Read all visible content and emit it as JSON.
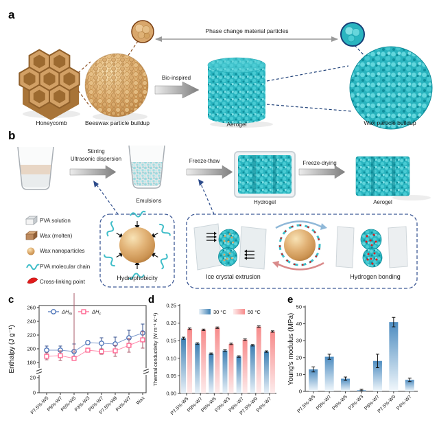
{
  "panel_letters": {
    "a": "a",
    "b": "b",
    "c": "c",
    "d": "d",
    "e": "e"
  },
  "panel_a": {
    "phase_particles_label": "Phase change material particles",
    "bio_inspired_label": "Bio-inspired",
    "captions": {
      "honeycomb": "Honeycomb",
      "beeswax": "Beeswax particle buildup",
      "aerogel": "Aerogel",
      "wax_buildup": "Wax particle buildup"
    }
  },
  "panel_b": {
    "arrow1_line1": "Stirring",
    "arrow1_line2": "Ultrasonic dispersion",
    "emulsions_label": "Emulsions",
    "arrow2_label": "Freeze-thaw",
    "hydrogel_label": "Hydrogel",
    "arrow3_label": "Freeze-drying",
    "aerogel_label": "Aerogel",
    "legend": [
      {
        "icon": "pva-solution-icon",
        "label": "PVA solution"
      },
      {
        "icon": "wax-molten-icon",
        "label": "Wax (molten)"
      },
      {
        "icon": "wax-nanoparticles-icon",
        "label": "Wax nanoparticles"
      },
      {
        "icon": "pva-molecular-chain-icon",
        "label": "PVA molecular chain"
      },
      {
        "icon": "cross-linking-point-icon",
        "label": "Cross-linking point"
      }
    ],
    "inset_labels": {
      "hydrophobicity": "Hydrophobicity",
      "ice_crystal": "Ice crystal extrusion",
      "hydrogen_bonding": "Hydrogen bonding"
    }
  },
  "chart_data": [
    {
      "panel": "c",
      "type": "line",
      "title": "",
      "ylabel": "Enthalpy (J g⁻¹)",
      "categories": [
        "P7.5%-W5",
        "P9%-W7",
        "P6%-W5",
        "P3%-W3",
        "P6%-W7",
        "P7.5%-W9",
        "P4%-W7",
        "Wax"
      ],
      "series": [
        {
          "name": "ΔH_m",
          "marker": "circle",
          "color": "#4a72b8",
          "error_color": "#35508f",
          "values": [
            198,
            198,
            196,
            209,
            208,
            207,
            216,
            223
          ],
          "errors": [
            6,
            6,
            11,
            3,
            8,
            10,
            11,
            13
          ]
        },
        {
          "name": "ΔH_c",
          "marker": "square",
          "color": "#ff5c8a",
          "error_color": "#a85868",
          "values": [
            189,
            190,
            186,
            198,
            196,
            197,
            205,
            213
          ],
          "errors": [
            5,
            7,
            9,
            2,
            4,
            8,
            10,
            12
          ]
        }
      ],
      "y_ticks_upper": [
        "180",
        "200",
        "220",
        "240",
        "260"
      ],
      "y_ticks_lower": [
        "0",
        "20"
      ],
      "axis_break": true,
      "ylim_upper": [
        180,
        260
      ],
      "ylim_lower": [
        0,
        20
      ],
      "legend_position": "top",
      "grid": false
    },
    {
      "panel": "d",
      "type": "bar",
      "title": "",
      "ylabel": "Thermal conductivity (W m⁻¹ K⁻¹)",
      "categories": [
        "P7.5%-W5",
        "P9%-W7",
        "P6%-W5",
        "P3%-W3",
        "P6%-W7",
        "P7.5%-W9",
        "P4%-W7"
      ],
      "series": [
        {
          "name": "30 °C",
          "color_top": "#3d80b4",
          "color_bottom": "#e9f1f8",
          "values": [
            0.157,
            0.142,
            0.113,
            0.122,
            0.105,
            0.137,
            0.119
          ],
          "errors": [
            0.003,
            0.002,
            0.002,
            0.002,
            0.002,
            0.002,
            0.002
          ]
        },
        {
          "name": "50 °C",
          "color_top": "#f78b8b",
          "color_bottom": "#fdecec",
          "values": [
            0.184,
            0.181,
            0.187,
            0.141,
            0.153,
            0.19,
            0.176
          ],
          "errors": [
            0.002,
            0.002,
            0.002,
            0.002,
            0.002,
            0.002,
            0.002
          ]
        }
      ],
      "y_ticks": [
        "0.00",
        "0.05",
        "0.10",
        "0.15",
        "0.20",
        "0.25"
      ],
      "ylim": [
        0,
        0.25
      ],
      "legend_position": "top",
      "grid": false
    },
    {
      "panel": "e",
      "type": "bar",
      "title": "",
      "ylabel": "Young's modulus (MPa)",
      "categories": [
        "P7.5%-W5",
        "P9%-W7",
        "P6%-W5",
        "P3%-W3",
        "P6%-W7",
        "P7.5%-W9",
        "P4%-W7"
      ],
      "series": [
        {
          "name": "Young's modulus",
          "color_top": "#4d8cc0",
          "color_bottom": "#f2f8fc",
          "values": [
            13,
            20.5,
            7.5,
            0.8,
            18,
            41,
            6.8
          ],
          "errors": [
            1.5,
            1.5,
            1,
            0.4,
            4,
            2.8,
            1
          ]
        }
      ],
      "y_ticks": [
        "0",
        "10",
        "20",
        "30",
        "40",
        "50"
      ],
      "ylim": [
        0,
        50
      ],
      "legend_position": "none",
      "grid": false
    }
  ],
  "colors": {
    "teal": "#2ab5c0",
    "teal_dark": "#0d8b98",
    "tan": "#d9a76c",
    "tan_dark": "#b5823f",
    "navy_dash": "#1d3f77",
    "brown_dash": "#8a4d1f",
    "series_blue": "#4a72b8",
    "series_pink": "#ff5c8a",
    "bar_blue": "#3d80b4",
    "bar_pink": "#f78b8b",
    "red_accent": "#e01b1b"
  }
}
